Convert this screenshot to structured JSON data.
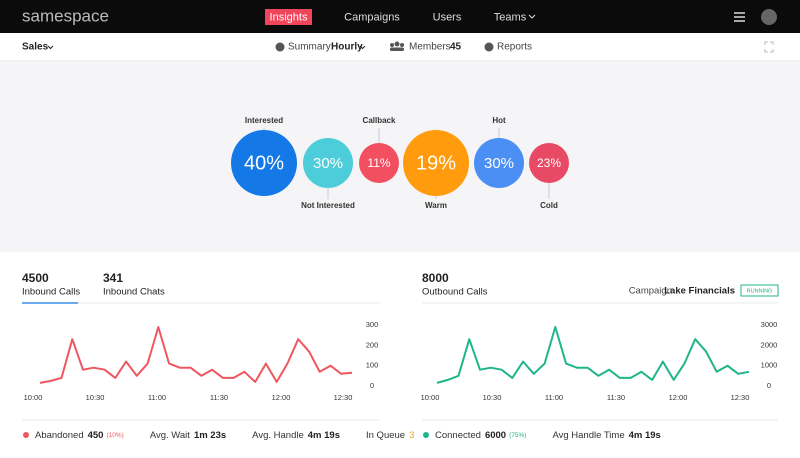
{
  "nav": {
    "logo": "samespace",
    "items": [
      "Insights",
      "Campaigns",
      "Users",
      "Teams"
    ]
  },
  "toolbar": {
    "team": "Sales",
    "summary_label": "Summary",
    "summary_value": "Hourly",
    "members_label": "Members",
    "members_value": "45",
    "reports": "Reports"
  },
  "bubbles": [
    {
      "label": "Interested",
      "value": "40%",
      "color": "#1479e6"
    },
    {
      "label": "Not Interested",
      "value": "30%",
      "color": "#4dcdd9"
    },
    {
      "label": "Callback",
      "value": "11%",
      "color": "#f24f60"
    },
    {
      "label": "Warm",
      "value": "19%",
      "color": "#ff9b0c"
    },
    {
      "label": "Hot",
      "value": "30%",
      "color": "#4c8ff4"
    },
    {
      "label": "Cold",
      "value": "23%",
      "color": "#e84964"
    }
  ],
  "panels": [
    {
      "stats": [
        {
          "value": "4500",
          "label": "Inbound Calls"
        },
        {
          "value": "341",
          "label": "Inbound Chats"
        }
      ],
      "chart": {
        "type": "line",
        "color": "#f0565f",
        "values": [
          15,
          25,
          40,
          230,
          80,
          90,
          80,
          40,
          120,
          50,
          110,
          290,
          110,
          90,
          90,
          50,
          80,
          40,
          40,
          70,
          20,
          110,
          20,
          110,
          230,
          170,
          70,
          100,
          60,
          65
        ],
        "ylim": [
          0,
          300
        ],
        "yticks": [
          0,
          100,
          200,
          300
        ],
        "xticks": [
          "10:00",
          "10:30",
          "11:00",
          "11:30",
          "12:00",
          "12:30"
        ]
      },
      "footer": [
        {
          "label": "Abandoned",
          "value": "450",
          "note": "(10%)",
          "color": "#f0565f"
        },
        {
          "label": "Avg. Wait",
          "value": "1m 23s"
        },
        {
          "label": "Avg. Handle",
          "value": "4m 19s"
        },
        {
          "label": "In Queue",
          "value": "3",
          "color": "#f0a020"
        }
      ]
    },
    {
      "stats": [
        {
          "value": "8000",
          "label": "Outbound Calls"
        }
      ],
      "campaign_label": "Campaign",
      "campaign": "Lake Financials",
      "status": "RUNNING",
      "chart": {
        "type": "line",
        "color": "#1fb58a",
        "values": [
          150,
          300,
          500,
          2300,
          800,
          900,
          800,
          400,
          1200,
          600,
          1100,
          2900,
          1100,
          900,
          900,
          500,
          800,
          400,
          400,
          700,
          300,
          1200,
          300,
          1100,
          2300,
          1700,
          700,
          1000,
          600,
          700
        ],
        "ylim": [
          0,
          3000
        ],
        "yticks": [
          0,
          1000,
          2000,
          3000
        ],
        "xticks": [
          "10:00",
          "10:30",
          "11:00",
          "11:30",
          "12:00",
          "12:30"
        ]
      },
      "footer": [
        {
          "label": "Connected",
          "value": "6000",
          "note": "(75%)",
          "color": "#1fb58a"
        },
        {
          "label": "Avg Handle Time",
          "value": "4m 19s"
        }
      ]
    }
  ]
}
